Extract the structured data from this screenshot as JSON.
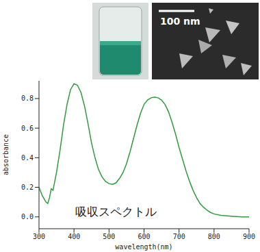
{
  "chart_data": {
    "type": "line",
    "x_label": "wavelength(nm)",
    "y_label": "absorbance",
    "annotation": "吸収スペクトル",
    "inset_scale_bar": "100 nm",
    "color": "#2e9b3e",
    "grid": false,
    "x": [
      300,
      310,
      320,
      325,
      330,
      335,
      340,
      350,
      360,
      370,
      380,
      390,
      400,
      410,
      420,
      430,
      440,
      450,
      460,
      470,
      480,
      490,
      500,
      510,
      520,
      530,
      540,
      550,
      560,
      570,
      580,
      590,
      600,
      610,
      620,
      630,
      640,
      650,
      660,
      670,
      680,
      690,
      700,
      710,
      720,
      730,
      740,
      750,
      760,
      770,
      780,
      790,
      800,
      820,
      850,
      880,
      900
    ],
    "values": [
      0.2,
      0.14,
      0.1,
      0.09,
      0.13,
      0.19,
      0.18,
      0.3,
      0.45,
      0.62,
      0.76,
      0.86,
      0.9,
      0.89,
      0.84,
      0.75,
      0.63,
      0.5,
      0.4,
      0.32,
      0.27,
      0.24,
      0.225,
      0.22,
      0.23,
      0.26,
      0.3,
      0.36,
      0.44,
      0.53,
      0.62,
      0.7,
      0.76,
      0.79,
      0.805,
      0.81,
      0.805,
      0.79,
      0.76,
      0.71,
      0.64,
      0.56,
      0.47,
      0.39,
      0.31,
      0.24,
      0.18,
      0.13,
      0.09,
      0.065,
      0.045,
      0.03,
      0.02,
      0.01,
      0.005,
      0,
      0
    ],
    "xlim": [
      300,
      900
    ],
    "xticks": [
      300,
      400,
      500,
      600,
      700,
      800,
      900
    ],
    "ylim": [
      -0.08,
      0.92
    ],
    "yticks": [
      {
        "value": 0,
        "label": "0.0"
      },
      0.2,
      0.4,
      0.6,
      0.8
    ]
  }
}
